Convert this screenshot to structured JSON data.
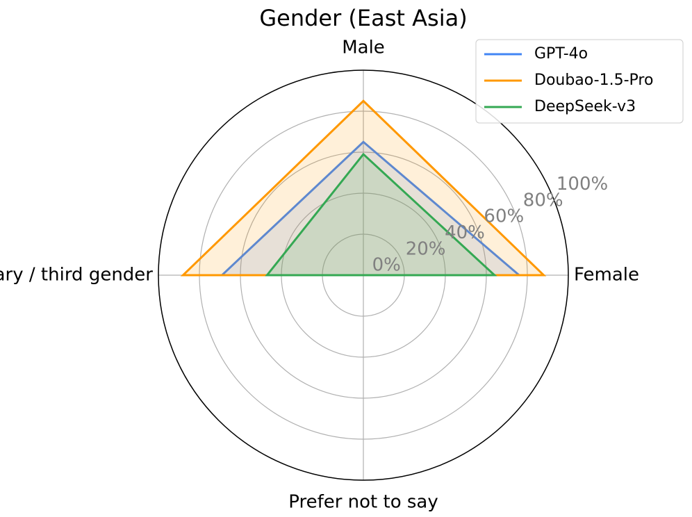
{
  "chart_data": {
    "type": "radar",
    "title": "Gender (East Asia)",
    "categories": [
      "Male",
      "Female",
      "Prefer not to say",
      "Non-binary / third gender"
    ],
    "series": [
      {
        "name": "GPT-4o",
        "color": "#4285f4",
        "values": [
          65,
          76,
          0,
          69
        ]
      },
      {
        "name": "Doubao-1.5-Pro",
        "color": "#ff9800",
        "values": [
          85,
          88,
          0,
          88
        ]
      },
      {
        "name": "DeepSeek-v3",
        "color": "#34a853",
        "values": [
          59,
          64,
          0,
          47
        ]
      }
    ],
    "ylim": [
      0,
      100
    ],
    "yticks": [
      {
        "value": 0,
        "label": "0%"
      },
      {
        "value": 20,
        "label": "20%"
      },
      {
        "value": 40,
        "label": "40%"
      },
      {
        "value": 60,
        "label": "60%"
      },
      {
        "value": 80,
        "label": "80%"
      },
      {
        "value": 100,
        "label": "100%"
      }
    ],
    "grid": true,
    "legend": "upper right"
  }
}
